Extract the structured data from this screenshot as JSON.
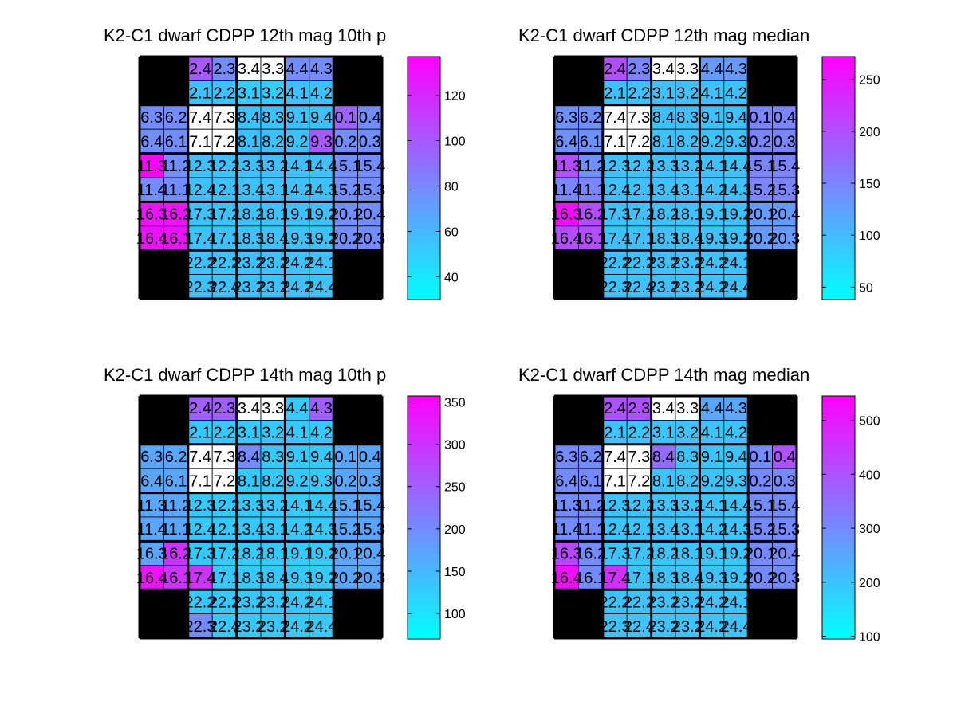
{
  "chart_data": [
    {
      "type": "heatmap",
      "title": "K2-C1 dwarf  CDPP 12th mag 10th p",
      "colorbar_ticks": [
        40,
        60,
        80,
        100,
        120
      ],
      "clim": [
        30,
        137
      ],
      "colormap": [
        "#00ffff",
        "#ff00ff"
      ],
      "cell_labels": [
        [
          null,
          null,
          "2.4",
          "2.3",
          "3.4",
          "3.3",
          "4.4",
          "4.3",
          null,
          null
        ],
        [
          null,
          null,
          "2.1",
          "2.2",
          "3.1",
          "3.2",
          "4.1",
          "4.2",
          null,
          null
        ],
        [
          "6.3",
          "6.2",
          "7.4",
          "7.3",
          "8.4",
          "8.3",
          "9.1",
          "9.4",
          "0.1",
          "0.4"
        ],
        [
          "6.4",
          "6.1",
          "7.1",
          "7.2",
          "8.1",
          "8.2",
          "9.2",
          "9.3",
          "0.2",
          "0.3"
        ],
        [
          "11.3",
          "11.2",
          "12.3",
          "12.2",
          "13.3",
          "13.2",
          "14.1",
          "14.4",
          "15.1",
          "15.4"
        ],
        [
          "11.4",
          "11.1",
          "12.4",
          "12.1",
          "13.4",
          "13.1",
          "14.2",
          "14.3",
          "15.2",
          "15.3"
        ],
        [
          "16.3",
          "16.2",
          "17.3",
          "17.2",
          "18.2",
          "18.1",
          "19.1",
          "19.2",
          "20.1",
          "20.4"
        ],
        [
          "16.4",
          "16.1",
          "17.4",
          "17.1",
          "18.3",
          "18.4",
          "19.3",
          "19.2",
          "20.2",
          "20.3"
        ],
        [
          null,
          null,
          "22.2",
          "22.2",
          "23.2",
          "23.2",
          "24.2",
          "24.1",
          null,
          null
        ],
        [
          null,
          null,
          "22.3",
          "22.4",
          "23.2",
          "23.2",
          "24.2",
          "24.4",
          null,
          null
        ]
      ],
      "values": [
        [
          null,
          null,
          100,
          78,
          "nan",
          "nan",
          78,
          78,
          null,
          null
        ],
        [
          null,
          null,
          55,
          55,
          52,
          52,
          55,
          55,
          null,
          null
        ],
        [
          78,
          78,
          "nan",
          "nan",
          55,
          55,
          55,
          55,
          95,
          78
        ],
        [
          78,
          78,
          "nan",
          "nan",
          55,
          55,
          55,
          100,
          78,
          78
        ],
        [
          137,
          78,
          55,
          55,
          55,
          55,
          55,
          55,
          78,
          78
        ],
        [
          78,
          78,
          55,
          55,
          55,
          55,
          55,
          55,
          78,
          78
        ],
        [
          130,
          130,
          55,
          55,
          55,
          55,
          55,
          55,
          78,
          78
        ],
        [
          130,
          130,
          55,
          55,
          55,
          55,
          55,
          55,
          78,
          78
        ],
        [
          null,
          null,
          55,
          55,
          55,
          55,
          55,
          55,
          null,
          null
        ],
        [
          null,
          null,
          55,
          55,
          55,
          55,
          55,
          55,
          null,
          null
        ]
      ]
    },
    {
      "type": "heatmap",
      "title": "K2-C1 dwarf  CDPP 12th mag median",
      "colorbar_ticks": [
        50,
        100,
        150,
        200,
        250
      ],
      "clim": [
        38,
        272
      ],
      "colormap": [
        "#00ffff",
        "#ff00ff"
      ],
      "cell_labels": [
        [
          null,
          null,
          "2.4",
          "2.3",
          "3.4",
          "3.3",
          "4.4",
          "4.3",
          null,
          null
        ],
        [
          null,
          null,
          "2.1",
          "2.2",
          "3.1",
          "3.2",
          "4.1",
          "4.2",
          null,
          null
        ],
        [
          "6.3",
          "6.2",
          "7.4",
          "7.3",
          "8.4",
          "8.3",
          "9.1",
          "9.4",
          "0.1",
          "0.4"
        ],
        [
          "6.4",
          "6.1",
          "7.1",
          "7.2",
          "8.1",
          "8.2",
          "9.2",
          "9.3",
          "0.2",
          "0.3"
        ],
        [
          "11.3",
          "11.2",
          "12.3",
          "12.2",
          "13.3",
          "13.2",
          "14.1",
          "14.4",
          "15.1",
          "15.4"
        ],
        [
          "11.4",
          "11.1",
          "12.4",
          "12.1",
          "13.4",
          "13.1",
          "14.2",
          "14.3",
          "15.2",
          "15.3"
        ],
        [
          "16.3",
          "16.2",
          "17.3",
          "17.2",
          "18.2",
          "18.1",
          "19.1",
          "19.2",
          "20.1",
          "20.4"
        ],
        [
          "16.4",
          "16.1",
          "17.4",
          "17.1",
          "18.3",
          "18.4",
          "19.3",
          "19.2",
          "20.2",
          "20.3"
        ],
        [
          null,
          null,
          "22.2",
          "22.2",
          "23.2",
          "23.2",
          "24.2",
          "24.1",
          null,
          null
        ],
        [
          null,
          null,
          "22.3",
          "22.4",
          "23.2",
          "23.2",
          "24.2",
          "24.4",
          null,
          null
        ]
      ],
      "values": [
        [
          null,
          null,
          200,
          150,
          "nan",
          "nan",
          130,
          130,
          null,
          null
        ],
        [
          null,
          null,
          95,
          95,
          95,
          95,
          95,
          95,
          null,
          null
        ],
        [
          140,
          140,
          "nan",
          "nan",
          95,
          95,
          95,
          95,
          150,
          150
        ],
        [
          140,
          140,
          "nan",
          "nan",
          95,
          95,
          95,
          95,
          150,
          150
        ],
        [
          200,
          140,
          95,
          95,
          95,
          95,
          95,
          95,
          150,
          150
        ],
        [
          150,
          150,
          95,
          95,
          95,
          95,
          95,
          95,
          150,
          150
        ],
        [
          260,
          200,
          95,
          95,
          95,
          95,
          95,
          95,
          130,
          130
        ],
        [
          200,
          200,
          95,
          95,
          95,
          95,
          95,
          95,
          130,
          130
        ],
        [
          null,
          null,
          95,
          95,
          95,
          95,
          95,
          95,
          null,
          null
        ],
        [
          null,
          null,
          95,
          95,
          95,
          95,
          95,
          95,
          null,
          null
        ]
      ]
    },
    {
      "type": "heatmap",
      "title": "K2-C1 dwarf  CDPP 14th mag 10th p",
      "colorbar_ticks": [
        100,
        150,
        200,
        250,
        300,
        350
      ],
      "clim": [
        70,
        357
      ],
      "colormap": [
        "#00ffff",
        "#ff00ff"
      ],
      "cell_labels": [
        [
          null,
          null,
          "2.4",
          "2.3",
          "3.4",
          "3.3",
          "4.4",
          "4.3",
          null,
          null
        ],
        [
          null,
          null,
          "2.1",
          "2.2",
          "3.1",
          "3.2",
          "4.1",
          "4.2",
          null,
          null
        ],
        [
          "6.3",
          "6.2",
          "7.4",
          "7.3",
          "8.4",
          "8.3",
          "9.1",
          "9.4",
          "0.1",
          "0.4"
        ],
        [
          "6.4",
          "6.1",
          "7.1",
          "7.2",
          "8.1",
          "8.2",
          "9.2",
          "9.3",
          "0.2",
          "0.3"
        ],
        [
          "11.3",
          "11.2",
          "12.3",
          "12.2",
          "13.3",
          "13.2",
          "14.1",
          "14.4",
          "15.1",
          "15.4"
        ],
        [
          "11.4",
          "11.1",
          "12.4",
          "12.1",
          "13.4",
          "13.1",
          "14.2",
          "14.3",
          "15.2",
          "15.3"
        ],
        [
          "16.3",
          "16.2",
          "17.3",
          "17.2",
          "18.2",
          "18.1",
          "19.1",
          "19.2",
          "20.1",
          "20.4"
        ],
        [
          "16.4",
          "16.1",
          "17.4",
          "17.1",
          "18.3",
          "18.4",
          "19.3",
          "19.2",
          "20.2",
          "20.3"
        ],
        [
          null,
          null,
          "22.2",
          "22.2",
          "23.2",
          "23.2",
          "24.2",
          "24.1",
          null,
          null
        ],
        [
          null,
          null,
          "22.3",
          "22.4",
          "23.2",
          "23.2",
          "24.2",
          "24.4",
          null,
          null
        ]
      ],
      "values": [
        [
          null,
          null,
          250,
          250,
          "nan",
          "nan",
          130,
          250,
          null,
          null
        ],
        [
          null,
          null,
          130,
          130,
          130,
          130,
          130,
          130,
          null,
          null
        ],
        [
          170,
          170,
          "nan",
          "nan",
          200,
          130,
          130,
          130,
          170,
          170
        ],
        [
          170,
          170,
          "nan",
          "nan",
          130,
          130,
          130,
          130,
          170,
          170
        ],
        [
          170,
          170,
          130,
          130,
          130,
          130,
          130,
          130,
          170,
          170
        ],
        [
          170,
          170,
          130,
          130,
          130,
          130,
          130,
          130,
          170,
          170
        ],
        [
          170,
          300,
          130,
          130,
          130,
          130,
          130,
          130,
          170,
          170
        ],
        [
          340,
          300,
          300,
          130,
          130,
          130,
          130,
          130,
          170,
          170
        ],
        [
          null,
          null,
          130,
          130,
          130,
          130,
          130,
          130,
          null,
          null
        ],
        [
          null,
          null,
          200,
          130,
          130,
          130,
          130,
          130,
          null,
          null
        ]
      ]
    },
    {
      "type": "heatmap",
      "title": "K2-C1 dwarf  CDPP 14th mag median",
      "colorbar_ticks": [
        100,
        200,
        300,
        400,
        500
      ],
      "clim": [
        95,
        545
      ],
      "colormap": [
        "#00ffff",
        "#ff00ff"
      ],
      "cell_labels": [
        [
          null,
          null,
          "2.4",
          "2.3",
          "3.4",
          "3.3",
          "4.4",
          "4.3",
          null,
          null
        ],
        [
          null,
          null,
          "2.1",
          "2.2",
          "3.1",
          "3.2",
          "4.1",
          "4.2",
          null,
          null
        ],
        [
          "6.3",
          "6.2",
          "7.4",
          "7.3",
          "8.4",
          "8.3",
          "9.1",
          "9.4",
          "0.1",
          "0.4"
        ],
        [
          "6.4",
          "6.1",
          "7.1",
          "7.2",
          "8.1",
          "8.2",
          "9.2",
          "9.3",
          "0.2",
          "0.3"
        ],
        [
          "11.3",
          "11.2",
          "12.3",
          "12.2",
          "13.3",
          "13.2",
          "14.1",
          "14.4",
          "15.1",
          "15.4"
        ],
        [
          "11.4",
          "11.1",
          "12.4",
          "12.1",
          "13.4",
          "13.1",
          "14.2",
          "14.3",
          "15.2",
          "15.3"
        ],
        [
          "16.3",
          "16.2",
          "17.3",
          "17.2",
          "18.2",
          "18.1",
          "19.1",
          "19.2",
          "20.1",
          "20.4"
        ],
        [
          "16.4",
          "16.1",
          "17.4",
          "17.1",
          "18.3",
          "18.4",
          "19.3",
          "19.2",
          "20.2",
          "20.3"
        ],
        [
          null,
          null,
          "22.2",
          "22.2",
          "23.2",
          "23.2",
          "24.2",
          "24.1",
          null,
          null
        ],
        [
          null,
          null,
          "22.3",
          "22.4",
          "23.2",
          "23.2",
          "24.2",
          "24.4",
          null,
          null
        ]
      ],
      "values": [
        [
          null,
          null,
          400,
          400,
          "nan",
          "nan",
          250,
          250,
          null,
          null
        ],
        [
          null,
          null,
          200,
          200,
          200,
          200,
          200,
          200,
          null,
          null
        ],
        [
          300,
          300,
          "nan",
          "nan",
          360,
          200,
          200,
          200,
          300,
          400
        ],
        [
          300,
          300,
          "nan",
          "nan",
          200,
          200,
          200,
          200,
          300,
          300
        ],
        [
          300,
          300,
          200,
          200,
          200,
          200,
          200,
          200,
          300,
          300
        ],
        [
          300,
          300,
          200,
          200,
          200,
          200,
          200,
          200,
          300,
          300
        ],
        [
          420,
          300,
          200,
          200,
          200,
          200,
          200,
          200,
          300,
          300
        ],
        [
          520,
          300,
          460,
          200,
          200,
          200,
          200,
          200,
          300,
          300
        ],
        [
          null,
          null,
          200,
          200,
          200,
          200,
          200,
          200,
          null,
          null
        ],
        [
          null,
          null,
          200,
          200,
          200,
          200,
          200,
          200,
          null,
          null
        ]
      ]
    }
  ]
}
